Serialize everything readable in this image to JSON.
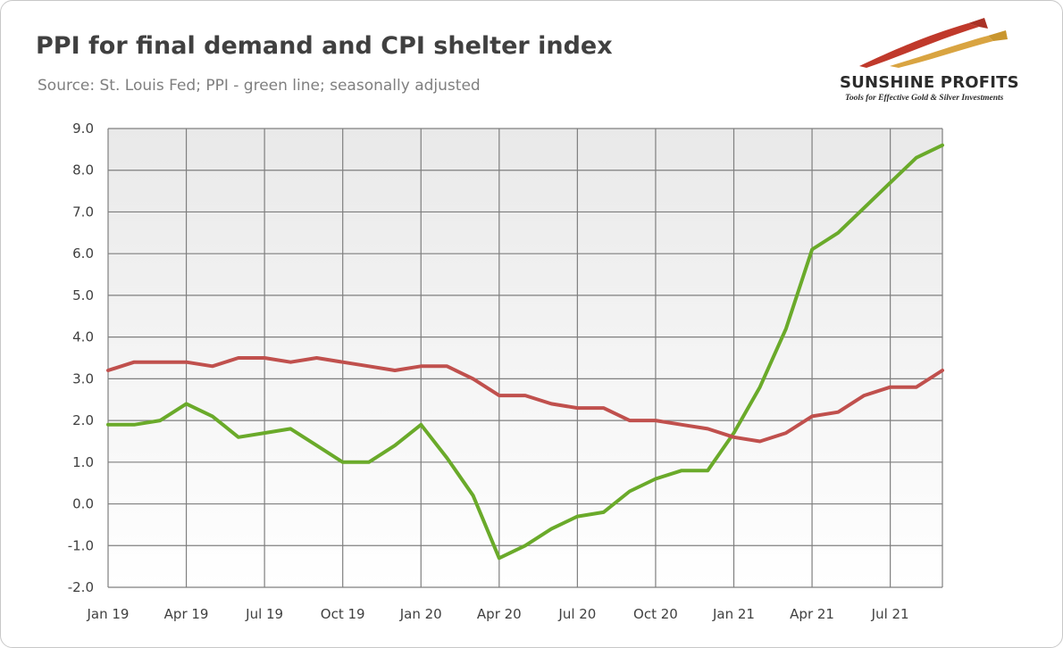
{
  "title": "PPI for final demand and CPI shelter index",
  "subtitle": "Source: St. Louis Fed; PPI - green line; seasonally adjusted",
  "logo": {
    "name": "SUNSHINE PROFITS",
    "tagline": "Tools for Effective Gold & Silver Investments"
  },
  "chart_data": {
    "type": "line",
    "x_tick_labels": [
      "Jan 19",
      "Apr 19",
      "Jul 19",
      "Oct 19",
      "Jan 20",
      "Apr 20",
      "Jul 20",
      "Oct 20",
      "Jan 21",
      "Apr 21",
      "Jul 21"
    ],
    "x": [
      "2019-01",
      "2019-02",
      "2019-03",
      "2019-04",
      "2019-05",
      "2019-06",
      "2019-07",
      "2019-08",
      "2019-09",
      "2019-10",
      "2019-11",
      "2019-12",
      "2020-01",
      "2020-02",
      "2020-03",
      "2020-04",
      "2020-05",
      "2020-06",
      "2020-07",
      "2020-08",
      "2020-09",
      "2020-10",
      "2020-11",
      "2020-12",
      "2021-01",
      "2021-02",
      "2021-03",
      "2021-04",
      "2021-05",
      "2021-06",
      "2021-07",
      "2021-08",
      "2021-09"
    ],
    "y_tick_labels": [
      "9.0",
      "8.0",
      "7.0",
      "6.0",
      "5.0",
      "4.0",
      "3.0",
      "2.0",
      "1.0",
      "0.0",
      "-1.0",
      "-2.0"
    ],
    "ylim": [
      -2,
      9
    ],
    "grid": true,
    "series": [
      {
        "color": "#6aaa2a",
        "values": [
          1.9,
          1.9,
          2.0,
          2.4,
          2.1,
          1.6,
          1.7,
          1.8,
          1.4,
          1.0,
          1.0,
          1.4,
          1.9,
          1.1,
          0.2,
          -1.3,
          -1.0,
          -0.6,
          -0.3,
          -0.2,
          0.3,
          0.6,
          0.8,
          0.8,
          1.7,
          2.8,
          4.2,
          6.1,
          6.5,
          7.1,
          7.7,
          8.3,
          8.6
        ]
      },
      {
        "color": "#c0504d",
        "values": [
          3.2,
          3.4,
          3.4,
          3.4,
          3.3,
          3.5,
          3.5,
          3.4,
          3.5,
          3.4,
          3.3,
          3.2,
          3.3,
          3.3,
          3.0,
          2.6,
          2.6,
          2.4,
          2.3,
          2.3,
          2.0,
          2.0,
          1.9,
          1.8,
          1.6,
          1.5,
          1.7,
          2.1,
          2.2,
          2.6,
          2.8,
          2.8,
          3.2
        ]
      }
    ]
  }
}
